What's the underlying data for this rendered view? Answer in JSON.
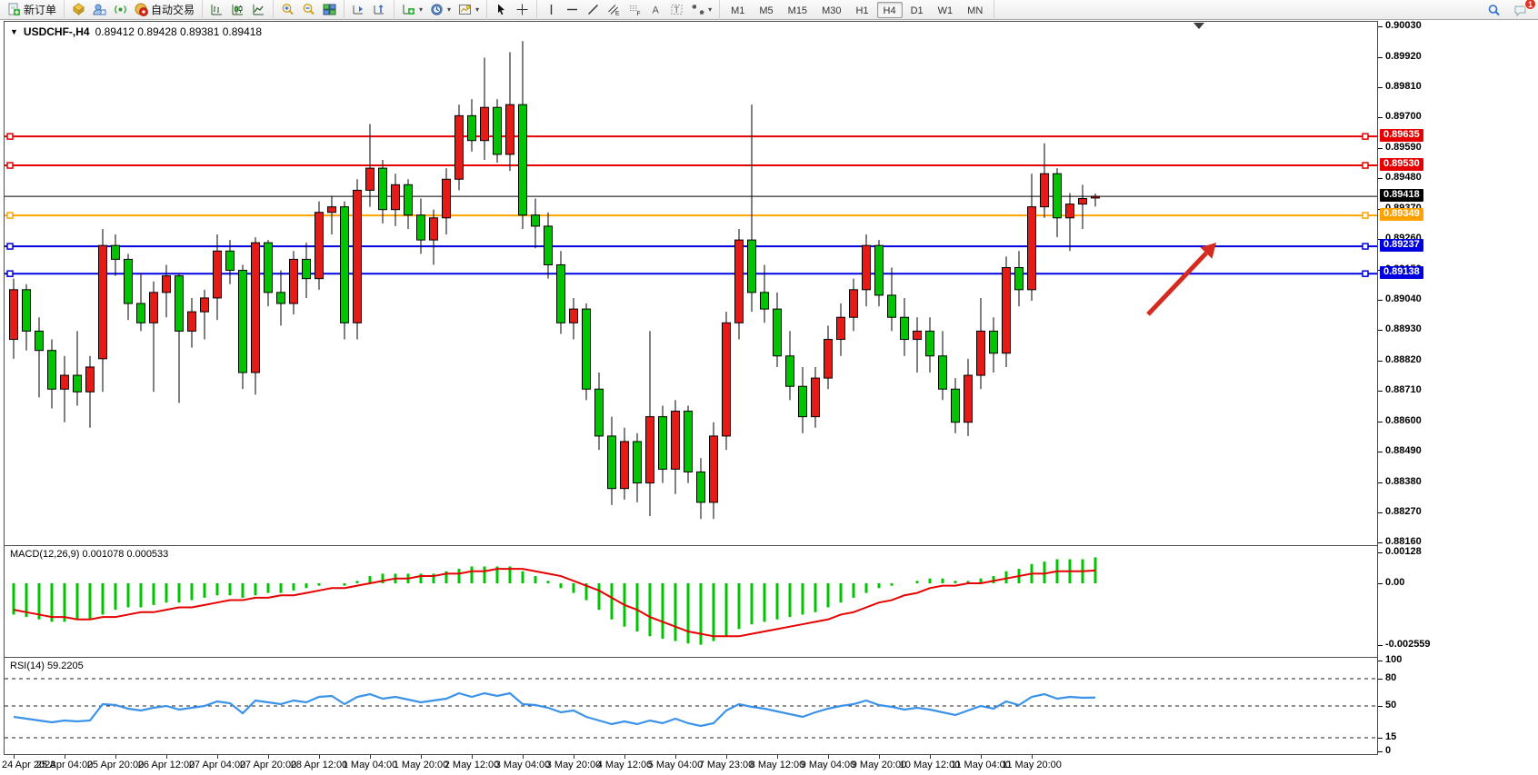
{
  "toolbar": {
    "new_order_label": "新订单",
    "auto_trading_label": "自动交易",
    "timeframes": [
      "M1",
      "M5",
      "M15",
      "M30",
      "H1",
      "H4",
      "D1",
      "W1",
      "MN"
    ],
    "active_timeframe": "H4",
    "notification_count": "1",
    "icons": [
      "new-order-icon",
      "styles-icon",
      "market-watch-icon",
      "navigator-icon",
      "auto-trading-icon",
      "bar-chart-icon",
      "candle-chart-icon",
      "line-chart-icon",
      "zoom-in-icon",
      "zoom-out-icon",
      "tile-windows-icon",
      "arrange-charts-icon",
      "cascade-charts-icon",
      "new-chart-icon",
      "period-icon",
      "templates-icon",
      "cursor-icon",
      "crosshair-icon",
      "vertical-line-icon",
      "horizontal-line-icon",
      "trendline-icon",
      "channel-icon",
      "fibonacci-icon",
      "text-icon",
      "text-label-icon",
      "arrows-icon",
      "search-icon",
      "chat-icon"
    ]
  },
  "chart": {
    "title": "USDCHF-,H4",
    "ohlc_display": "0.89412 0.89428 0.89381 0.89418",
    "macd_label": "MACD(12,26,9) 0.001078 0.000533",
    "rsi_label": "RSI(14) 59.2205",
    "current_price": "0.89418",
    "price_axis": [
      "0.90030",
      "0.89920",
      "0.89810",
      "0.89700",
      "0.89590",
      "0.89480",
      "0.89370",
      "0.89260",
      "0.89150",
      "0.89040",
      "0.88930",
      "0.88820",
      "0.88710",
      "0.88600",
      "0.88490",
      "0.88380",
      "0.88270",
      "0.88160"
    ],
    "macd_axis": [
      "0.00128",
      "0.00",
      "-0.002559"
    ],
    "rsi_axis": [
      "100",
      "80",
      "50",
      "15",
      "0"
    ],
    "rsi_levels": [
      80,
      50,
      15
    ],
    "lines": [
      {
        "label": "0.89635",
        "price": 0.89635,
        "color": "#e60000",
        "kind": "resistance"
      },
      {
        "label": "0.89530",
        "price": 0.8953,
        "color": "#e60000",
        "kind": "resistance"
      },
      {
        "label": "0.89418",
        "price": 0.89418,
        "color": "#000000",
        "kind": "current-price"
      },
      {
        "label": "0.89349",
        "price": 0.89349,
        "color": "#ffa200",
        "kind": "pivot"
      },
      {
        "label": "0.89237",
        "price": 0.89237,
        "color": "#0000e0",
        "kind": "support"
      },
      {
        "label": "0.89138",
        "price": 0.89138,
        "color": "#0000e0",
        "kind": "support"
      }
    ],
    "time_axis": [
      "24 Apr 2023",
      "25 Apr 04:00",
      "25 Apr 20:00",
      "26 Apr 12:00",
      "27 Apr 04:00",
      "27 Apr 20:00",
      "28 Apr 12:00",
      "1 May 04:00",
      "1 May 20:00",
      "2 May 12:00",
      "3 May 04:00",
      "3 May 20:00",
      "4 May 12:00",
      "5 May 04:00",
      "7 May 23:00",
      "8 May 12:00",
      "9 May 04:00",
      "9 May 20:00",
      "10 May 12:00",
      "11 May 04:00",
      "11 May 20:00"
    ]
  },
  "chart_data": {
    "type": "candlestick",
    "symbol": "USDCHF",
    "period": "H4",
    "title": "USDCHF-,H4 0.89412 0.89428 0.89381 0.89418",
    "ylim": [
      0.8816,
      0.9003
    ],
    "bull_color": "#e41b17",
    "bear_color": "#00c400",
    "note": "red bodies = bullish, green bodies = bearish (CN convention)",
    "candles_ohlc": [
      [
        0.889,
        0.8912,
        0.8883,
        0.8908
      ],
      [
        0.8908,
        0.891,
        0.8886,
        0.8893
      ],
      [
        0.8893,
        0.8898,
        0.8869,
        0.8886
      ],
      [
        0.8886,
        0.889,
        0.8865,
        0.8872
      ],
      [
        0.8872,
        0.8884,
        0.886,
        0.8877
      ],
      [
        0.8877,
        0.8893,
        0.8866,
        0.8871
      ],
      [
        0.8871,
        0.8884,
        0.8858,
        0.888
      ],
      [
        0.8883,
        0.893,
        0.8871,
        0.8924
      ],
      [
        0.8924,
        0.8928,
        0.8913,
        0.8919
      ],
      [
        0.8919,
        0.8921,
        0.8897,
        0.8903
      ],
      [
        0.8903,
        0.8914,
        0.8893,
        0.8896
      ],
      [
        0.8896,
        0.8911,
        0.8871,
        0.8907
      ],
      [
        0.8907,
        0.8917,
        0.8898,
        0.8913
      ],
      [
        0.8913,
        0.8914,
        0.8867,
        0.8893
      ],
      [
        0.8893,
        0.8905,
        0.8887,
        0.89
      ],
      [
        0.89,
        0.8908,
        0.889,
        0.8905
      ],
      [
        0.8905,
        0.8928,
        0.8897,
        0.8922
      ],
      [
        0.8922,
        0.8926,
        0.891,
        0.8915
      ],
      [
        0.8915,
        0.8917,
        0.8872,
        0.8878
      ],
      [
        0.8878,
        0.8927,
        0.887,
        0.8925
      ],
      [
        0.8925,
        0.8926,
        0.8902,
        0.8907
      ],
      [
        0.8907,
        0.8915,
        0.8895,
        0.8903
      ],
      [
        0.8903,
        0.8922,
        0.8899,
        0.8919
      ],
      [
        0.8919,
        0.8925,
        0.8905,
        0.8912
      ],
      [
        0.8912,
        0.894,
        0.8908,
        0.8936
      ],
      [
        0.8936,
        0.8942,
        0.8928,
        0.8938
      ],
      [
        0.8938,
        0.894,
        0.889,
        0.8896
      ],
      [
        0.8896,
        0.8948,
        0.889,
        0.8944
      ],
      [
        0.8944,
        0.8968,
        0.8938,
        0.8952
      ],
      [
        0.8952,
        0.8955,
        0.8932,
        0.8937
      ],
      [
        0.8937,
        0.895,
        0.8931,
        0.8946
      ],
      [
        0.8946,
        0.8948,
        0.893,
        0.8935
      ],
      [
        0.8935,
        0.8941,
        0.8921,
        0.8926
      ],
      [
        0.8926,
        0.8937,
        0.8917,
        0.8934
      ],
      [
        0.8934,
        0.8952,
        0.8928,
        0.8948
      ],
      [
        0.8948,
        0.8975,
        0.8944,
        0.8971
      ],
      [
        0.8971,
        0.8977,
        0.8958,
        0.8962
      ],
      [
        0.8962,
        0.8992,
        0.8955,
        0.8974
      ],
      [
        0.8974,
        0.8977,
        0.8954,
        0.8957
      ],
      [
        0.8957,
        0.8994,
        0.8951,
        0.8975
      ],
      [
        0.8975,
        0.8998,
        0.893,
        0.8935
      ],
      [
        0.8935,
        0.8941,
        0.8923,
        0.8931
      ],
      [
        0.8931,
        0.8936,
        0.8912,
        0.8917
      ],
      [
        0.8917,
        0.8922,
        0.8892,
        0.8896
      ],
      [
        0.8896,
        0.8905,
        0.889,
        0.8901
      ],
      [
        0.8901,
        0.8903,
        0.8868,
        0.8872
      ],
      [
        0.8872,
        0.8878,
        0.885,
        0.8855
      ],
      [
        0.8855,
        0.8862,
        0.883,
        0.8836
      ],
      [
        0.8836,
        0.8858,
        0.8832,
        0.8853
      ],
      [
        0.8853,
        0.8856,
        0.8831,
        0.8838
      ],
      [
        0.8838,
        0.8893,
        0.8826,
        0.8862
      ],
      [
        0.8862,
        0.8866,
        0.8838,
        0.8843
      ],
      [
        0.8843,
        0.8868,
        0.8834,
        0.8864
      ],
      [
        0.8864,
        0.8866,
        0.8838,
        0.8842
      ],
      [
        0.8842,
        0.8847,
        0.8825,
        0.8831
      ],
      [
        0.8831,
        0.886,
        0.8825,
        0.8855
      ],
      [
        0.8855,
        0.89,
        0.885,
        0.8896
      ],
      [
        0.8896,
        0.893,
        0.889,
        0.8926
      ],
      [
        0.8926,
        0.8975,
        0.89,
        0.8907
      ],
      [
        0.8907,
        0.8917,
        0.8896,
        0.8901
      ],
      [
        0.8901,
        0.8907,
        0.888,
        0.8884
      ],
      [
        0.8884,
        0.8893,
        0.8868,
        0.8873
      ],
      [
        0.8873,
        0.888,
        0.8856,
        0.8862
      ],
      [
        0.8862,
        0.888,
        0.8858,
        0.8876
      ],
      [
        0.8876,
        0.8895,
        0.8872,
        0.889
      ],
      [
        0.889,
        0.8903,
        0.8884,
        0.8898
      ],
      [
        0.8898,
        0.8912,
        0.8893,
        0.8908
      ],
      [
        0.8908,
        0.8928,
        0.8902,
        0.8924
      ],
      [
        0.8924,
        0.8926,
        0.8902,
        0.8906
      ],
      [
        0.8906,
        0.8916,
        0.8893,
        0.8898
      ],
      [
        0.8898,
        0.8905,
        0.8884,
        0.889
      ],
      [
        0.889,
        0.8898,
        0.8878,
        0.8893
      ],
      [
        0.8893,
        0.8898,
        0.8878,
        0.8884
      ],
      [
        0.8884,
        0.8893,
        0.8868,
        0.8872
      ],
      [
        0.8872,
        0.8876,
        0.8856,
        0.886
      ],
      [
        0.886,
        0.8883,
        0.8855,
        0.8877
      ],
      [
        0.8877,
        0.8905,
        0.8872,
        0.8893
      ],
      [
        0.8893,
        0.8898,
        0.8878,
        0.8885
      ],
      [
        0.8885,
        0.892,
        0.888,
        0.8916
      ],
      [
        0.8916,
        0.8922,
        0.8902,
        0.8908
      ],
      [
        0.8908,
        0.895,
        0.8904,
        0.8938
      ],
      [
        0.8938,
        0.8961,
        0.8934,
        0.895
      ],
      [
        0.895,
        0.8952,
        0.8927,
        0.8934
      ],
      [
        0.8934,
        0.8943,
        0.8922,
        0.8939
      ],
      [
        0.8939,
        0.8946,
        0.893,
        0.8941
      ],
      [
        0.89412,
        0.89428,
        0.89381,
        0.89418
      ]
    ],
    "macd": {
      "params": "12,26,9",
      "main_value": 0.001078,
      "signal_value": 0.000533,
      "ylim": [
        -0.002559,
        0.00128
      ],
      "histogram": [
        -0.0013,
        -0.0014,
        -0.0015,
        -0.0016,
        -0.0016,
        -0.0015,
        -0.0015,
        -0.0013,
        -0.0011,
        -0.001,
        -0.001,
        -0.0009,
        -0.0008,
        -0.0008,
        -0.0007,
        -0.0006,
        -0.0005,
        -0.0005,
        -0.0006,
        -0.0005,
        -0.0004,
        -0.0004,
        -0.0003,
        -0.0002,
        -0.0001,
        0.0,
        -0.0001,
        0.0001,
        0.0003,
        0.0004,
        0.0004,
        0.0004,
        0.0004,
        0.0004,
        0.0005,
        0.0006,
        0.0007,
        0.0007,
        0.0007,
        0.0007,
        0.0005,
        0.0003,
        0.0001,
        -0.0002,
        -0.0004,
        -0.0007,
        -0.0011,
        -0.0015,
        -0.0018,
        -0.002,
        -0.0022,
        -0.0023,
        -0.0024,
        -0.0025,
        -0.00255,
        -0.0024,
        -0.0022,
        -0.0019,
        -0.0017,
        -0.0016,
        -0.0015,
        -0.0014,
        -0.0013,
        -0.0012,
        -0.001,
        -0.0008,
        -0.0006,
        -0.0004,
        -0.0002,
        -0.0001,
        0.0,
        0.0001,
        0.0002,
        0.0002,
        0.0001,
        0.0001,
        0.0002,
        0.0003,
        0.0005,
        0.0006,
        0.0008,
        0.0009,
        0.001,
        0.001,
        0.001,
        0.001078
      ],
      "signal": [
        -0.0011,
        -0.0012,
        -0.0013,
        -0.0014,
        -0.0014,
        -0.0015,
        -0.0015,
        -0.0014,
        -0.0014,
        -0.0013,
        -0.0012,
        -0.0012,
        -0.0011,
        -0.001,
        -0.001,
        -0.0009,
        -0.0008,
        -0.0007,
        -0.0007,
        -0.0006,
        -0.0006,
        -0.0005,
        -0.0005,
        -0.0004,
        -0.0003,
        -0.0002,
        -0.0002,
        -0.0001,
        0.0,
        0.0001,
        0.0002,
        0.0002,
        0.0003,
        0.0003,
        0.0004,
        0.0004,
        0.0005,
        0.0005,
        0.0006,
        0.0006,
        0.0006,
        0.0005,
        0.0004,
        0.0003,
        0.0001,
        -0.0001,
        -0.0003,
        -0.0006,
        -0.0009,
        -0.0011,
        -0.0014,
        -0.0016,
        -0.0018,
        -0.002,
        -0.0021,
        -0.0022,
        -0.0022,
        -0.0022,
        -0.0021,
        -0.002,
        -0.0019,
        -0.0018,
        -0.0017,
        -0.0016,
        -0.0015,
        -0.0013,
        -0.0012,
        -0.001,
        -0.0008,
        -0.0007,
        -0.0005,
        -0.0004,
        -0.0002,
        -0.0001,
        -0.0001,
        0.0,
        0.0,
        0.0001,
        0.0002,
        0.0003,
        0.0004,
        0.0004,
        0.0005,
        0.0005,
        0.0005,
        0.000533
      ]
    },
    "rsi": {
      "params": "14",
      "value": 59.2205,
      "levels": [
        80,
        50,
        15
      ],
      "series": [
        38,
        36,
        34,
        32,
        34,
        33,
        34,
        52,
        51,
        47,
        45,
        48,
        50,
        46,
        48,
        50,
        55,
        53,
        42,
        56,
        54,
        52,
        56,
        54,
        60,
        61,
        52,
        60,
        63,
        58,
        60,
        57,
        54,
        56,
        58,
        64,
        60,
        64,
        61,
        64,
        52,
        51,
        48,
        43,
        45,
        38,
        34,
        30,
        33,
        30,
        34,
        31,
        36,
        31,
        28,
        31,
        45,
        52,
        49,
        47,
        44,
        41,
        38,
        43,
        47,
        50,
        52,
        56,
        51,
        49,
        46,
        48,
        46,
        43,
        40,
        45,
        50,
        47,
        55,
        51,
        60,
        63,
        58,
        60,
        59,
        59.22
      ]
    },
    "annotations": [
      {
        "type": "arrow",
        "color": "#d42a20",
        "from_xy": [
          1263,
          345
        ],
        "to_xy": [
          1338,
          266
        ],
        "meaning": "bullish projection toward 0.89237 retest"
      }
    ]
  }
}
